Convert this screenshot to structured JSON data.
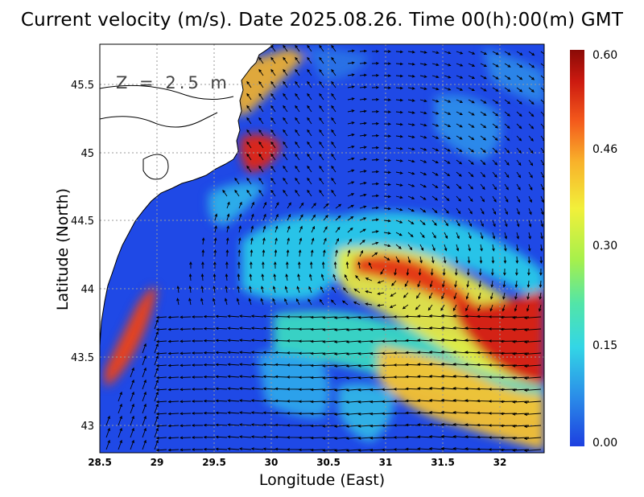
{
  "title": "Current velocity (m/s). Date 2025.08.26. Time 00(h):00(m) GMT",
  "depth_label": "Z = 2.5 m",
  "xlabel": "Longitude (East)",
  "ylabel": "Latitude (North)",
  "x_ticks": [
    "28.5",
    "29",
    "29.5",
    "30",
    "30.5",
    "31",
    "31.5",
    "32"
  ],
  "y_ticks": [
    "43",
    "43.5",
    "44",
    "44.5",
    "45",
    "45.5"
  ],
  "colorbar": {
    "ticks": [
      "0.60",
      "0.46",
      "0.30",
      "0.15",
      "0.00"
    ],
    "min": 0.0,
    "max": 0.6,
    "colors": [
      "#1d3fe0",
      "#2a8ae8",
      "#33d6e6",
      "#52e5a8",
      "#a6f04c",
      "#f2f03a",
      "#f8b02a",
      "#f45a1c",
      "#cc1a10",
      "#8a0a06"
    ]
  },
  "chart_data": {
    "type": "heatmap",
    "title": "Current velocity (m/s). Date 2025.08.26. Time 00(h):00(m) GMT",
    "xlabel": "Longitude (East)",
    "ylabel": "Latitude (North)",
    "xlim": [
      28.5,
      32.4
    ],
    "ylim": [
      42.8,
      45.8
    ],
    "value_range": [
      0.0,
      0.6
    ],
    "grid": true
  }
}
